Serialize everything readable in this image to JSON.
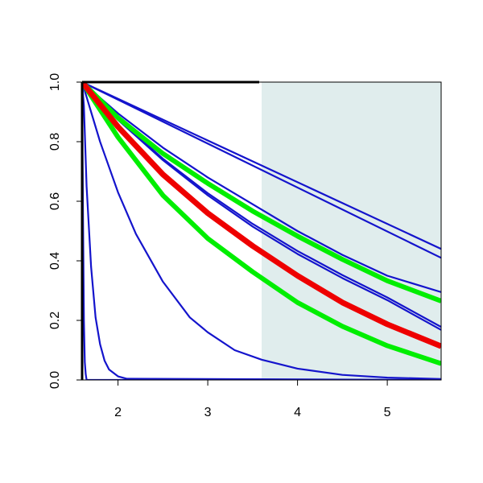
{
  "chart_data": {
    "type": "line",
    "title": "",
    "xlabel": "",
    "ylabel": "",
    "xlim": [
      1.6,
      5.6
    ],
    "ylim": [
      0,
      1
    ],
    "x_ticks": [
      2,
      3,
      4,
      5
    ],
    "y_ticks": [
      0.0,
      0.2,
      0.4,
      0.6,
      0.8,
      1.0
    ],
    "x_tick_labels": [
      "2",
      "3",
      "4",
      "5"
    ],
    "y_tick_labels": [
      "0.0",
      "0.2",
      "0.4",
      "0.6",
      "0.8",
      "1.0"
    ],
    "grid": false,
    "legend": "none",
    "shaded_region": {
      "x_from": 3.6,
      "x_to": 5.6,
      "color": "#e0eded"
    },
    "series_style": {
      "blue": {
        "color": "#1414cc",
        "weight": "thin"
      },
      "green": {
        "color": "#00ee00",
        "weight": "thick"
      },
      "red": {
        "color": "#ee0000",
        "weight": "thickest"
      }
    },
    "series": [
      {
        "style": "blue",
        "x": [
          1.6,
          1.61,
          1.62,
          1.63,
          1.64,
          1.65,
          5.6
        ],
        "y": [
          1.0,
          0.55,
          0.2,
          0.06,
          0.02,
          0.0,
          0.0
        ]
      },
      {
        "style": "blue",
        "x": [
          1.6,
          1.62,
          1.65,
          1.7,
          1.75,
          1.8,
          1.85,
          1.9,
          2.0,
          2.1,
          5.6
        ],
        "y": [
          1.0,
          0.92,
          0.65,
          0.38,
          0.21,
          0.12,
          0.065,
          0.035,
          0.012,
          0.004,
          0.0
        ]
      },
      {
        "style": "blue",
        "x": [
          1.6,
          1.7,
          1.8,
          2.0,
          2.2,
          2.5,
          2.8,
          3.0,
          3.3,
          3.6,
          4.0,
          4.5,
          5.0,
          5.6
        ],
        "y": [
          1.0,
          0.9,
          0.8,
          0.63,
          0.49,
          0.33,
          0.21,
          0.16,
          0.1,
          0.068,
          0.038,
          0.017,
          0.008,
          0.003
        ]
      },
      {
        "style": "blue",
        "x": [
          1.6,
          2.0,
          2.5,
          3.0,
          3.5,
          4.0,
          4.5,
          5.0,
          5.6
        ],
        "y": [
          1.0,
          0.876,
          0.743,
          0.627,
          0.524,
          0.433,
          0.352,
          0.277,
          0.178
        ]
      },
      {
        "style": "blue",
        "x": [
          1.6,
          2.0,
          2.5,
          3.0,
          3.5,
          4.0,
          4.5,
          5.0,
          5.6
        ],
        "y": [
          1.0,
          0.873,
          0.738,
          0.62,
          0.515,
          0.423,
          0.342,
          0.268,
          0.168
        ]
      },
      {
        "style": "blue",
        "x": [
          1.6,
          2.0,
          2.5,
          3.0,
          3.5,
          4.0,
          4.5,
          5.0,
          5.6
        ],
        "y": [
          1.0,
          0.895,
          0.78,
          0.68,
          0.59,
          0.5,
          0.42,
          0.35,
          0.295
        ]
      },
      {
        "style": "blue",
        "x": [
          1.6,
          5.6
        ],
        "y": [
          1.0,
          0.41
        ]
      },
      {
        "style": "blue",
        "x": [
          1.6,
          5.6
        ],
        "y": [
          1.0,
          0.44
        ]
      },
      {
        "style": "green",
        "x": [
          1.6,
          2.0,
          2.5,
          3.0,
          3.5,
          4.0,
          4.5,
          5.0,
          5.6
        ],
        "y": [
          1.0,
          0.88,
          0.76,
          0.66,
          0.567,
          0.483,
          0.405,
          0.333,
          0.265
        ]
      },
      {
        "style": "green",
        "x": [
          1.6,
          2.0,
          2.5,
          3.0,
          3.5,
          4.0,
          4.5,
          5.0,
          5.6
        ],
        "y": [
          1.0,
          0.815,
          0.62,
          0.475,
          0.363,
          0.26,
          0.18,
          0.115,
          0.055
        ]
      },
      {
        "style": "red",
        "x": [
          1.6,
          2.0,
          2.5,
          3.0,
          3.5,
          4.0,
          4.5,
          5.0,
          5.6
        ],
        "y": [
          1.0,
          0.85,
          0.69,
          0.56,
          0.45,
          0.35,
          0.26,
          0.187,
          0.113
        ]
      }
    ]
  }
}
